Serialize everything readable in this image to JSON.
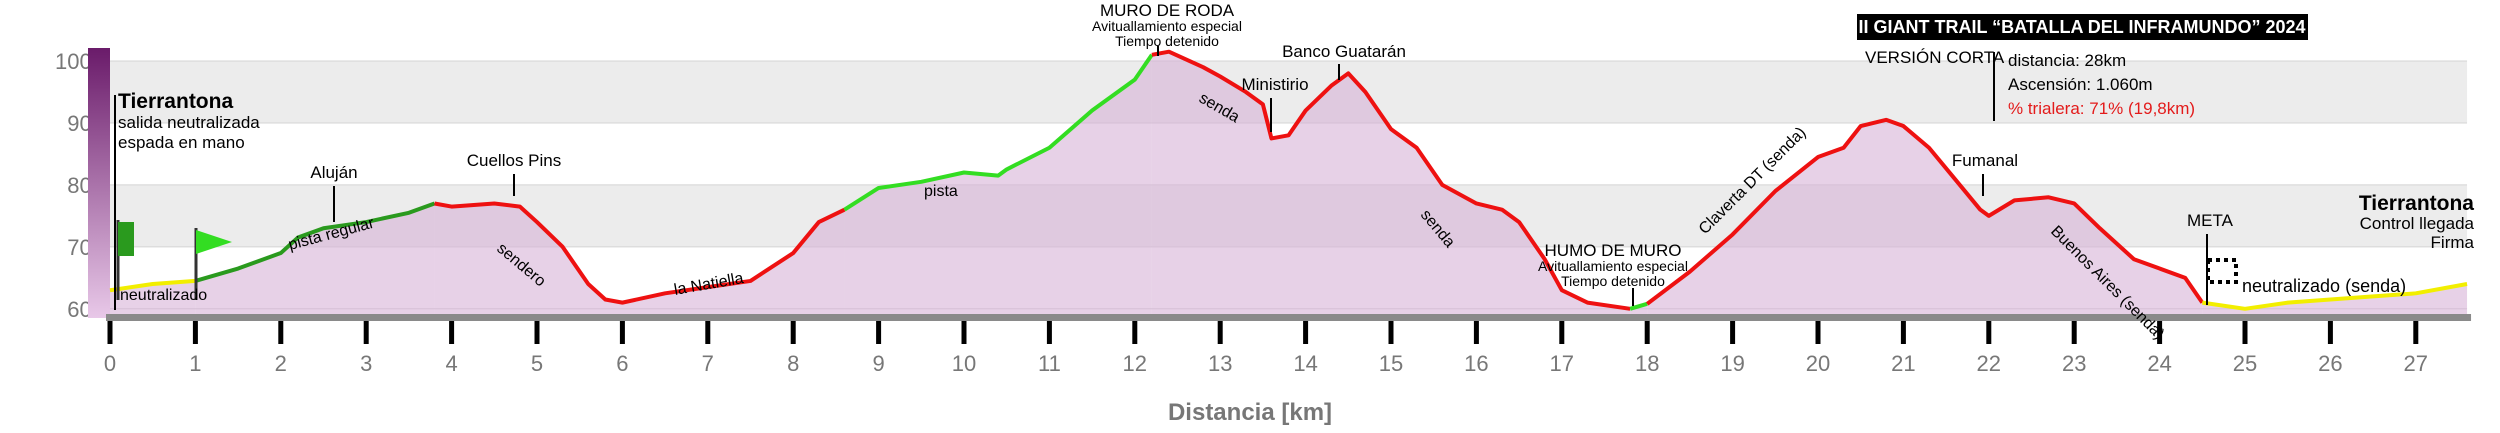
{
  "chart_data": {
    "type": "elevation-profile",
    "title": "II GIANT TRAIL “BATALLA DEL INFRAMUNDO” 2024",
    "subtitle": "VERSIÓN CORTA",
    "info": [
      "distancia: 28km",
      "Ascensión: 1.060m",
      "% trialera: 71% (19,8km)"
    ],
    "info_colors": [
      "#000000",
      "#000000",
      "#e31b1b"
    ],
    "xlabel": "Distancia [km]",
    "xlim": [
      0,
      27.6
    ],
    "ylim": [
      590,
      1020
    ],
    "xticks": [
      0,
      1,
      2,
      3,
      4,
      5,
      6,
      7,
      8,
      9,
      10,
      11,
      12,
      13,
      14,
      15,
      16,
      17,
      18,
      19,
      20,
      21,
      22,
      23,
      24,
      25,
      26,
      27
    ],
    "yticks": [
      600,
      700,
      800,
      900,
      1000
    ],
    "grid": true,
    "area_color": "#d7b2d7",
    "series": [
      {
        "color": "#f2ee00",
        "x": [
          0,
          0.5,
          1
        ],
        "values": [
          630,
          640,
          645
        ]
      },
      {
        "color": "#2a9a1e",
        "x": [
          1,
          1.5,
          2,
          2.2,
          2.5,
          3,
          3.5,
          3.8
        ],
        "values": [
          645,
          665,
          690,
          715,
          730,
          740,
          755,
          770
        ]
      },
      {
        "color": "#ee1111",
        "x": [
          3.8,
          4,
          4.5,
          4.8,
          5,
          5.3,
          5.6,
          5.8,
          6,
          6.5,
          7,
          7.5,
          8,
          8.3,
          8.6
        ],
        "values": [
          770,
          765,
          770,
          765,
          740,
          700,
          640,
          615,
          610,
          625,
          635,
          645,
          690,
          740,
          760
        ]
      },
      {
        "color": "#33dd22",
        "x": [
          8.6,
          9,
          9.5,
          10,
          10.4,
          10.5,
          11,
          11.5,
          12,
          12.2
        ],
        "values": [
          760,
          795,
          805,
          820,
          815,
          825,
          860,
          920,
          970,
          1010
        ]
      },
      {
        "color": "#ee1111",
        "x": [
          12.2,
          12.4,
          12.8,
          13,
          13.3,
          13.5,
          13.6,
          13.8,
          14,
          14.3,
          14.5,
          14.7,
          15,
          15.3,
          15.6,
          16,
          16.3,
          16.5,
          16.8,
          17,
          17.3,
          17.8
        ],
        "values": [
          1010,
          1015,
          990,
          975,
          950,
          930,
          875,
          880,
          920,
          960,
          980,
          950,
          890,
          860,
          800,
          770,
          760,
          740,
          680,
          630,
          610,
          600
        ]
      },
      {
        "color": "#33dd22",
        "x": [
          17.8,
          18
        ],
        "values": [
          600,
          608
        ]
      },
      {
        "color": "#ee1111",
        "x": [
          18,
          18.5,
          19,
          19.5,
          20,
          20.3,
          20.5,
          20.8,
          21,
          21.3,
          21.6,
          21.9,
          22,
          22.3,
          22.7,
          23,
          23.3,
          23.7,
          24,
          24.3,
          24.5
        ],
        "values": [
          608,
          660,
          720,
          790,
          845,
          860,
          895,
          905,
          895,
          860,
          810,
          760,
          750,
          775,
          780,
          770,
          730,
          680,
          665,
          650,
          610
        ]
      },
      {
        "color": "#f2ee00",
        "x": [
          24.5,
          25,
          25.5,
          26,
          26.5,
          27,
          27.6
        ],
        "values": [
          610,
          600,
          610,
          615,
          620,
          625,
          640
        ]
      }
    ],
    "annotations": [
      [
        "Tierrantona",
        "salida neutralizada",
        "espada en mano"
      ],
      [
        "Aluján"
      ],
      [
        "Cuellos Pins"
      ],
      [
        "MURO DE RODA",
        "Avituallamiento especial",
        "Tiempo detenido"
      ],
      [
        "Ministirio"
      ],
      [
        "Banco Guatarán"
      ],
      [
        "HUMO DE MURO",
        "Avituallamiento especial",
        "Tiempo detenido"
      ],
      [
        "Fumanal"
      ],
      [
        "META"
      ],
      [
        "Tierrantona",
        "Control llegada",
        "Firma"
      ]
    ],
    "segment_labels": [
      "neutralizado",
      "pista regular",
      "sendero",
      "la Natiella",
      "pista",
      "senda",
      "senda",
      "Claverta DT (senda)",
      "Buenos Aires (senda)",
      "neutralizado (senda)"
    ]
  }
}
